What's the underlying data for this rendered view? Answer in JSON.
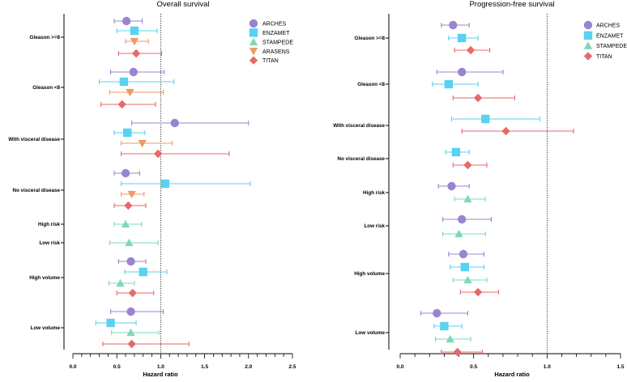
{
  "colors": {
    "ARCHES": "#9b84cf",
    "ENZAMET": "#5ad1f0",
    "STAMPEDE": "#7fd8b8",
    "ARASENS": "#ef9a66",
    "TITAN": "#e8696b",
    "axis": "#000000",
    "reference_line": "#000000"
  },
  "markers": {
    "ARCHES": "circle",
    "ENZAMET": "square",
    "STAMPEDE": "triangle-up",
    "ARASENS": "triangle-down",
    "TITAN": "diamond"
  },
  "chart_data": [
    {
      "type": "forest",
      "title": "Overall survival",
      "xlabel": "Hazard ratio",
      "xlim": [
        0,
        2.5
      ],
      "xticks": [
        0.0,
        0.5,
        1.0,
        1.5,
        2.0,
        2.5
      ],
      "xtick_labels": [
        "0.0",
        "0.5",
        "1.0",
        "1.5",
        "2.0",
        "2.5"
      ],
      "reference_line": 1.0,
      "legend": [
        "ARCHES",
        "ENZAMET",
        "STAMPEDE",
        "ARASENS",
        "TITAN"
      ],
      "legend_position": "top-right",
      "groups": [
        {
          "label": "Gleason >=8",
          "rows": [
            {
              "series": "ARCHES",
              "hr": 0.61,
              "lo": 0.47,
              "hi": 0.79
            },
            {
              "series": "ENZAMET",
              "hr": 0.7,
              "lo": 0.5,
              "hi": 0.96
            },
            {
              "series": "ARASENS",
              "hr": 0.7,
              "lo": 0.6,
              "hi": 0.86
            },
            {
              "series": "TITAN",
              "hr": 0.72,
              "lo": 0.52,
              "hi": 1.01
            }
          ]
        },
        {
          "label": "Gleason <8",
          "rows": [
            {
              "series": "ARCHES",
              "hr": 0.69,
              "lo": 0.43,
              "hi": 1.04
            },
            {
              "series": "ENZAMET",
              "hr": 0.58,
              "lo": 0.3,
              "hi": 1.15
            },
            {
              "series": "ARASENS",
              "hr": 0.65,
              "lo": 0.42,
              "hi": 1.03
            },
            {
              "series": "TITAN",
              "hr": 0.56,
              "lo": 0.32,
              "hi": 0.94
            }
          ]
        },
        {
          "label": "With visceral disease",
          "rows": [
            {
              "series": "ARCHES",
              "hr": 1.16,
              "lo": 0.67,
              "hi": 2.0
            },
            {
              "series": "ENZAMET",
              "hr": 0.62,
              "lo": 0.47,
              "hi": 0.82
            },
            {
              "series": "ARASENS",
              "hr": 0.79,
              "lo": 0.55,
              "hi": 1.13
            },
            {
              "series": "TITAN",
              "hr": 0.97,
              "lo": 0.55,
              "hi": 1.78
            }
          ]
        },
        {
          "label": "No visceral disease",
          "rows": [
            {
              "series": "ARCHES",
              "hr": 0.6,
              "lo": 0.47,
              "hi": 0.76
            },
            {
              "series": "ENZAMET",
              "hr": 1.05,
              "lo": 0.55,
              "hi": 2.02
            },
            {
              "series": "ARASENS",
              "hr": 0.67,
              "lo": 0.55,
              "hi": 0.81
            },
            {
              "series": "TITAN",
              "hr": 0.63,
              "lo": 0.47,
              "hi": 0.83
            }
          ]
        },
        {
          "label": "High risk",
          "rows": [
            {
              "series": "STAMPEDE",
              "hr": 0.6,
              "lo": 0.47,
              "hi": 0.78
            }
          ]
        },
        {
          "label": "Low risk",
          "rows": [
            {
              "series": "STAMPEDE",
              "hr": 0.64,
              "lo": 0.42,
              "hi": 0.97
            }
          ]
        },
        {
          "label": "High volume",
          "rows": [
            {
              "series": "ARCHES",
              "hr": 0.66,
              "lo": 0.52,
              "hi": 0.83
            },
            {
              "series": "ENZAMET",
              "hr": 0.8,
              "lo": 0.59,
              "hi": 1.07
            },
            {
              "series": "STAMPEDE",
              "hr": 0.54,
              "lo": 0.41,
              "hi": 0.7
            },
            {
              "series": "TITAN",
              "hr": 0.68,
              "lo": 0.5,
              "hi": 0.92
            }
          ]
        },
        {
          "label": "Low volume",
          "rows": [
            {
              "series": "ARCHES",
              "hr": 0.66,
              "lo": 0.43,
              "hi": 1.03
            },
            {
              "series": "ENZAMET",
              "hr": 0.43,
              "lo": 0.26,
              "hi": 0.72
            },
            {
              "series": "STAMPEDE",
              "hr": 0.66,
              "lo": 0.44,
              "hi": 0.98
            },
            {
              "series": "TITAN",
              "hr": 0.67,
              "lo": 0.34,
              "hi": 1.32
            }
          ]
        }
      ]
    },
    {
      "type": "forest",
      "title": "Progression-free survival",
      "xlabel": "Hazard ratio",
      "xlim": [
        0,
        1.5
      ],
      "xticks": [
        0.0,
        0.5,
        1.0,
        1.5
      ],
      "xtick_labels": [
        "0.0",
        "0.5",
        "1.0",
        "1.5"
      ],
      "reference_line": 1.0,
      "legend": [
        "ARCHES",
        "ENZAMET",
        "STAMPEDE",
        "TITAN"
      ],
      "legend_position": "top-right",
      "groups": [
        {
          "label": "Gleason >=8",
          "rows": [
            {
              "series": "ARCHES",
              "hr": 0.36,
              "lo": 0.28,
              "hi": 0.47
            },
            {
              "series": "ENZAMET",
              "hr": 0.42,
              "lo": 0.33,
              "hi": 0.53
            },
            {
              "series": "TITAN",
              "hr": 0.48,
              "lo": 0.37,
              "hi": 0.61
            }
          ]
        },
        {
          "label": "Gleason <8",
          "rows": [
            {
              "series": "ARCHES",
              "hr": 0.42,
              "lo": 0.25,
              "hi": 0.7
            },
            {
              "series": "ENZAMET",
              "hr": 0.33,
              "lo": 0.22,
              "hi": 0.53
            },
            {
              "series": "TITAN",
              "hr": 0.53,
              "lo": 0.36,
              "hi": 0.78
            }
          ]
        },
        {
          "label": "With visceral disease",
          "rows": [
            {
              "series": "ENZAMET",
              "hr": 0.58,
              "lo": 0.35,
              "hi": 0.95
            },
            {
              "series": "TITAN",
              "hr": 0.72,
              "lo": 0.42,
              "hi": 1.18
            }
          ]
        },
        {
          "label": "No visceral disease",
          "rows": [
            {
              "series": "ENZAMET",
              "hr": 0.38,
              "lo": 0.31,
              "hi": 0.47
            },
            {
              "series": "TITAN",
              "hr": 0.46,
              "lo": 0.36,
              "hi": 0.59
            }
          ]
        },
        {
          "label": "High risk",
          "rows": [
            {
              "series": "ARCHES",
              "hr": 0.35,
              "lo": 0.26,
              "hi": 0.47
            },
            {
              "series": "STAMPEDE",
              "hr": 0.46,
              "lo": 0.37,
              "hi": 0.58
            }
          ]
        },
        {
          "label": "Low risk",
          "rows": [
            {
              "series": "ARCHES",
              "hr": 0.42,
              "lo": 0.29,
              "hi": 0.62
            },
            {
              "series": "STAMPEDE",
              "hr": 0.4,
              "lo": 0.29,
              "hi": 0.58
            }
          ]
        },
        {
          "label": "High volume",
          "rows": [
            {
              "series": "ARCHES",
              "hr": 0.43,
              "lo": 0.33,
              "hi": 0.57
            },
            {
              "series": "ENZAMET",
              "hr": 0.44,
              "lo": 0.34,
              "hi": 0.57
            },
            {
              "series": "STAMPEDE",
              "hr": 0.46,
              "lo": 0.36,
              "hi": 0.59
            },
            {
              "series": "TITAN",
              "hr": 0.53,
              "lo": 0.41,
              "hi": 0.67
            }
          ]
        },
        {
          "label": "Low volume",
          "rows": [
            {
              "series": "ARCHES",
              "hr": 0.25,
              "lo": 0.14,
              "hi": 0.46
            },
            {
              "series": "ENZAMET",
              "hr": 0.3,
              "lo": 0.23,
              "hi": 0.42
            },
            {
              "series": "STAMPEDE",
              "hr": 0.34,
              "lo": 0.24,
              "hi": 0.48
            },
            {
              "series": "TITAN",
              "hr": 0.39,
              "lo": 0.28,
              "hi": 0.56
            }
          ]
        }
      ]
    }
  ]
}
